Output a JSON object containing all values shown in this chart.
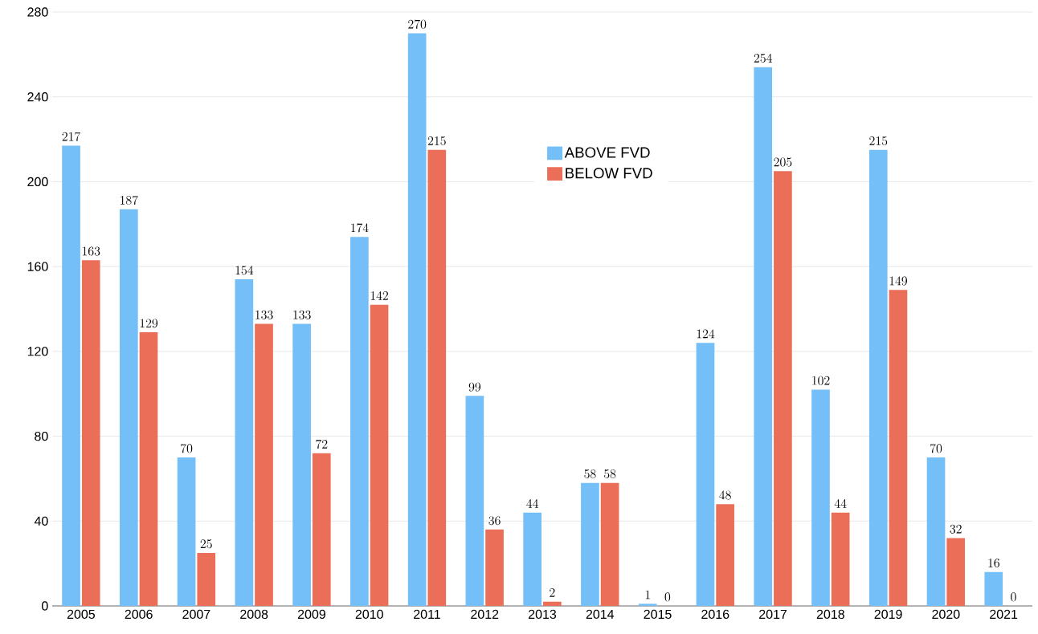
{
  "chart_data": {
    "type": "bar",
    "categories": [
      "2005",
      "2006",
      "2007",
      "2008",
      "2009",
      "2010",
      "2011",
      "2012",
      "2013",
      "2014",
      "2015",
      "2016",
      "2017",
      "2018",
      "2019",
      "2020",
      "2021"
    ],
    "series": [
      {
        "name": "ABOVE FVD",
        "color": "#74bff8",
        "values": [
          217,
          187,
          70,
          154,
          133,
          174,
          270,
          99,
          44,
          58,
          1,
          124,
          254,
          102,
          215,
          70,
          16
        ]
      },
      {
        "name": "BELOW FVD",
        "color": "#eb6e58",
        "values": [
          163,
          129,
          25,
          133,
          72,
          142,
          215,
          36,
          2,
          58,
          0,
          48,
          205,
          44,
          149,
          32,
          0
        ]
      }
    ],
    "ylim": [
      0,
      280
    ],
    "yticks": [
      0,
      40,
      80,
      120,
      160,
      200,
      240,
      280
    ],
    "grid": "y",
    "legend": "top",
    "data_labels": true
  }
}
